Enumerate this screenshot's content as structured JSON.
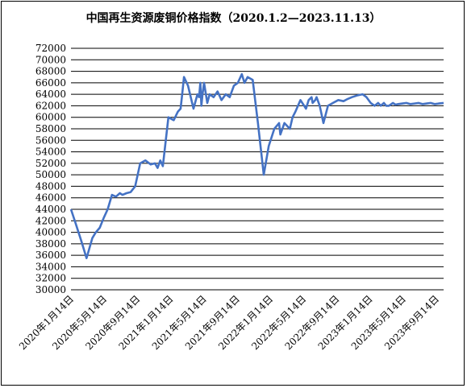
{
  "chart_data": {
    "type": "line",
    "title": "中国再生资源废铜价格指数（2020.1.2—2023.11.13）",
    "xlabel": "",
    "ylabel": "",
    "ylim": [
      30000,
      72000
    ],
    "yticks": [
      30000,
      32000,
      34000,
      36000,
      38000,
      40000,
      42000,
      44000,
      46000,
      48000,
      50000,
      52000,
      54000,
      56000,
      58000,
      60000,
      62000,
      64000,
      66000,
      68000,
      70000,
      72000
    ],
    "xticks": [
      "2020年1月14日",
      "2020年5月14日",
      "2020年9月14日",
      "2021年1月14日",
      "2021年5月14日",
      "2021年9月14日",
      "2022年1月14日",
      "2022年5月14日",
      "2022年9月14日",
      "2023年1月14日",
      "2023年5月14日",
      "2023年9月14日"
    ],
    "grid": true,
    "legend": "none",
    "line_color": "#4472c4",
    "series": [
      {
        "x": [
          "2020-01-02",
          "2020-01-20",
          "2020-02-10",
          "2020-03-01",
          "2020-03-23",
          "2020-04-05",
          "2020-04-20",
          "2020-05-05",
          "2020-05-20",
          "2020-06-05",
          "2020-06-20",
          "2020-07-05",
          "2020-07-15",
          "2020-07-30",
          "2020-08-15",
          "2020-09-01",
          "2020-09-20",
          "2020-10-10",
          "2020-10-30",
          "2020-11-15",
          "2020-11-25",
          "2020-12-05",
          "2020-12-15",
          "2021-01-05",
          "2021-01-25",
          "2021-02-10",
          "2021-02-20",
          "2021-02-25",
          "2021-03-05",
          "2021-03-20",
          "2021-04-10",
          "2021-04-25",
          "2021-05-01",
          "2021-05-06",
          "2021-05-10",
          "2021-05-14",
          "2021-05-20",
          "2021-06-01",
          "2021-06-10",
          "2021-06-25",
          "2021-07-10",
          "2021-07-25",
          "2021-08-10",
          "2021-08-25",
          "2021-09-10",
          "2021-09-25",
          "2021-10-10",
          "2021-10-20",
          "2021-11-01",
          "2021-11-20",
          "2021-12-10",
          "2022-01-01",
          "2022-01-20",
          "2022-02-10",
          "2022-02-28",
          "2022-03-05",
          "2022-03-20",
          "2022-04-10",
          "2022-04-20",
          "2022-05-01",
          "2022-05-20",
          "2022-06-10",
          "2022-06-20",
          "2022-07-01",
          "2022-07-05",
          "2022-07-15",
          "2022-07-20",
          "2022-08-01",
          "2022-08-15",
          "2022-09-01",
          "2022-09-20",
          "2022-10-10",
          "2022-10-30",
          "2022-11-15",
          "2022-12-01",
          "2022-12-20",
          "2023-01-10",
          "2023-01-25",
          "2023-02-10",
          "2023-02-25",
          "2023-03-10",
          "2023-03-20",
          "2023-04-01",
          "2023-04-10",
          "2023-04-20",
          "2023-05-05",
          "2023-05-15",
          "2023-05-25",
          "2023-06-10",
          "2023-06-25",
          "2023-07-10",
          "2023-07-25",
          "2023-08-10",
          "2023-08-25",
          "2023-09-10",
          "2023-09-25",
          "2023-10-10",
          "2023-10-25",
          "2023-11-13"
        ],
        "values": [
          44000,
          41500,
          38500,
          35500,
          39000,
          40000,
          40800,
          42500,
          44000,
          46500,
          46200,
          46800,
          46500,
          46800,
          47000,
          48000,
          52000,
          52500,
          51800,
          52000,
          51200,
          52500,
          51500,
          60000,
          59500,
          61000,
          61500,
          63500,
          67000,
          65500,
          61500,
          64000,
          63500,
          66000,
          62000,
          64000,
          66000,
          62500,
          64000,
          63500,
          64500,
          63000,
          64000,
          63500,
          65500,
          66000,
          67500,
          66000,
          67000,
          66500,
          59000,
          50000,
          55000,
          58000,
          59000,
          57000,
          59000,
          58000,
          60000,
          61000,
          63000,
          61500,
          63000,
          63500,
          62500,
          63000,
          63500,
          62000,
          59000,
          62000,
          62500,
          63000,
          62800,
          63200,
          63500,
          63800,
          64000,
          63500,
          62500,
          62000,
          62500,
          62000,
          62500,
          62000,
          62000,
          62500,
          62200,
          62300,
          62400,
          62500,
          62300,
          62400,
          62500,
          62300,
          62400,
          62500,
          62300,
          62400,
          62500
        ]
      }
    ]
  }
}
